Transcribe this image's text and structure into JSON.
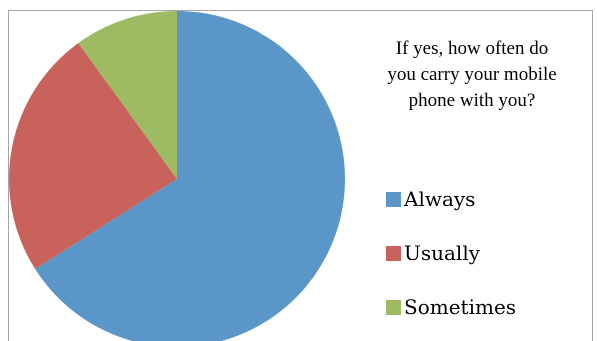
{
  "chart_data": {
    "type": "pie",
    "title": "If yes, how often do\nyou carry your mobile\nphone with you?",
    "categories": [
      "Always",
      "Usually",
      "Sometimes"
    ],
    "values": [
      66,
      24,
      10
    ],
    "colors": [
      "#5b96c8",
      "#c9625b",
      "#9dbb62"
    ],
    "start_angle_deg": 0,
    "direction": "clockwise",
    "legend_position": "right"
  }
}
